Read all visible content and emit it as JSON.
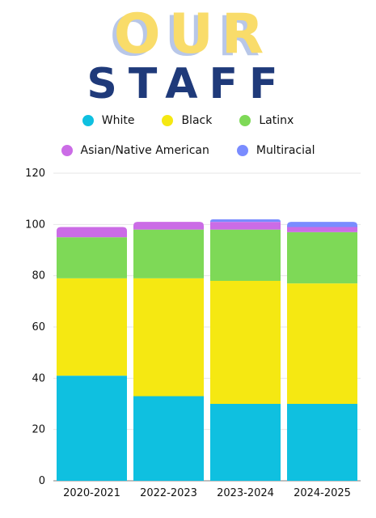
{
  "header": {
    "title_line1": "OUR",
    "title_line2": "STAFF"
  },
  "legend": {
    "row1": [
      {
        "label": "White",
        "color": "#0fc0e0"
      },
      {
        "label": "Black",
        "color": "#f5e812"
      },
      {
        "label": "Latinx",
        "color": "#7ed957"
      }
    ],
    "row2": [
      {
        "label": "Asian/Native American",
        "color": "#cb6ce6"
      },
      {
        "label": "Multiracial",
        "color": "#7a8cff"
      }
    ]
  },
  "chart_data": {
    "type": "bar",
    "stacked": true,
    "categories": [
      "2020-2021",
      "2022-2023",
      "2023-2024",
      "2024-2025"
    ],
    "series": [
      {
        "name": "White",
        "color": "#0fc0e0",
        "values": [
          41,
          33,
          30,
          30
        ]
      },
      {
        "name": "Black",
        "color": "#f5e812",
        "values": [
          38,
          46,
          48,
          47
        ]
      },
      {
        "name": "Latinx",
        "color": "#7ed957",
        "values": [
          16,
          19,
          20,
          20
        ]
      },
      {
        "name": "Asian/Native American",
        "color": "#cb6ce6",
        "values": [
          4,
          3,
          3,
          2
        ]
      },
      {
        "name": "Multiracial",
        "color": "#7a8cff",
        "values": [
          0,
          0,
          1,
          2
        ]
      }
    ],
    "ylim": [
      0,
      120
    ],
    "yticks": [
      0,
      20,
      40,
      60,
      80,
      100,
      120
    ],
    "grid": true,
    "legend_position": "top"
  }
}
